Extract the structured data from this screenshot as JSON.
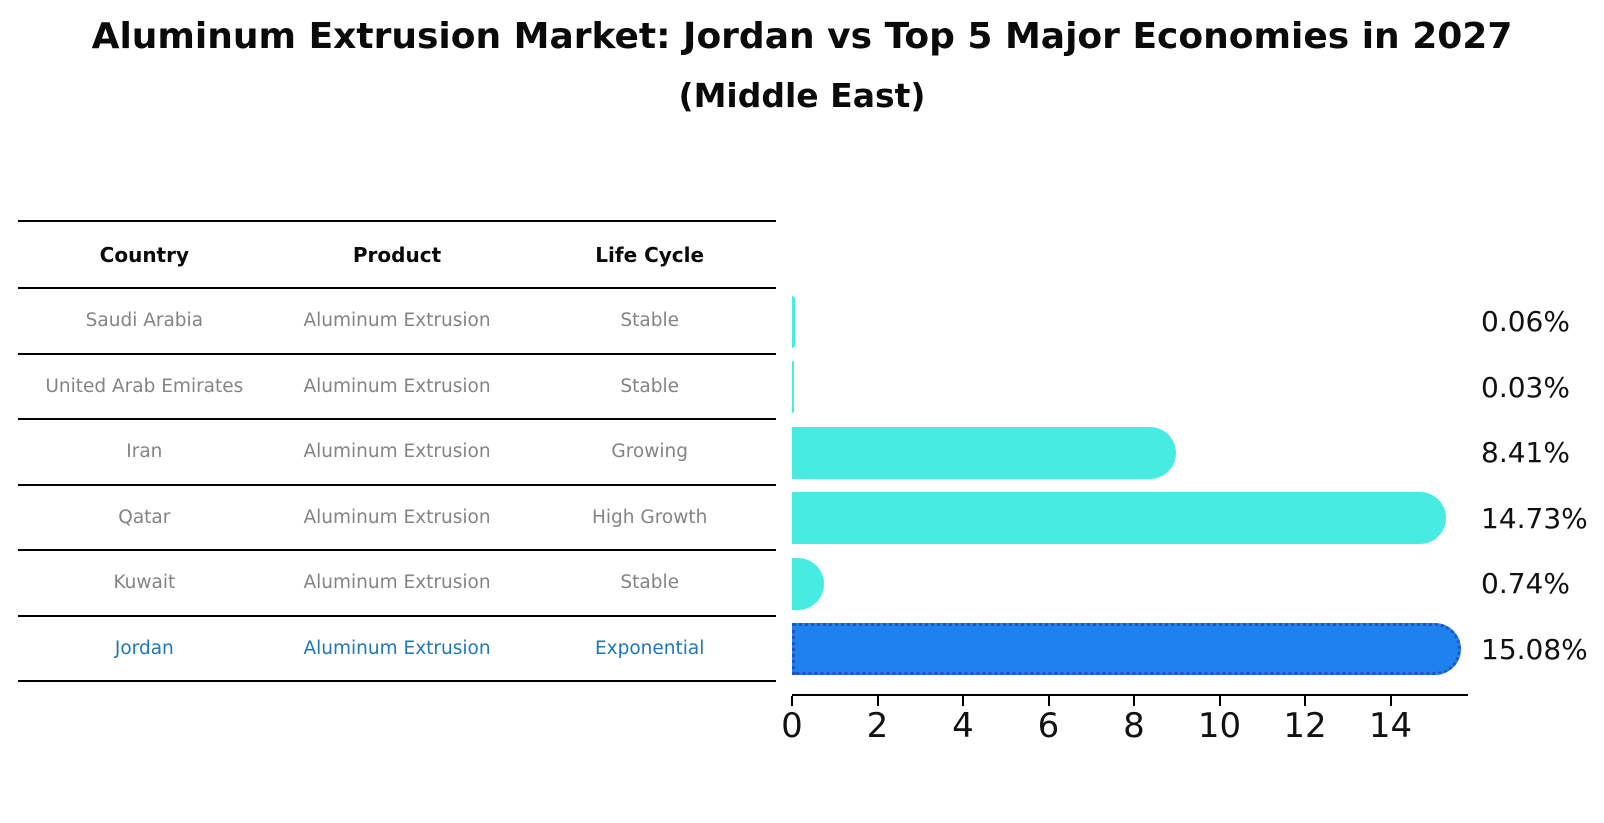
{
  "header": {
    "title": "Aluminum Extrusion Market: Jordan vs Top 5 Major Economies in 2027",
    "subtitle": "(Middle East)"
  },
  "table": {
    "columns": [
      "Country",
      "Product",
      "Life Cycle"
    ],
    "rows": [
      {
        "country": "Saudi Arabia",
        "product": "Aluminum Extrusion",
        "life_cycle": "Stable",
        "value": 0.06,
        "value_label": "0.06%",
        "highlight": false
      },
      {
        "country": "United Arab Emirates",
        "product": "Aluminum Extrusion",
        "life_cycle": "Stable",
        "value": 0.03,
        "value_label": "0.03%",
        "highlight": false
      },
      {
        "country": "Iran",
        "product": "Aluminum Extrusion",
        "life_cycle": "Growing",
        "value": 8.41,
        "value_label": "8.41%",
        "highlight": false
      },
      {
        "country": "Qatar",
        "product": "Aluminum Extrusion",
        "life_cycle": "High Growth",
        "value": 14.73,
        "value_label": "14.73%",
        "highlight": false
      },
      {
        "country": "Kuwait",
        "product": "Aluminum Extrusion",
        "life_cycle": "Stable",
        "value": 0.74,
        "value_label": "0.74%",
        "highlight": false
      },
      {
        "country": "Jordan",
        "product": "Aluminum Extrusion",
        "life_cycle": "Exponential",
        "value": 15.08,
        "value_label": "15.08%",
        "highlight": true
      }
    ]
  },
  "chart_data": {
    "type": "bar",
    "orientation": "horizontal",
    "title": "Aluminum Extrusion Market: Jordan vs Top 5 Major Economies in 2027",
    "subtitle": "(Middle East)",
    "categories": [
      "Saudi Arabia",
      "United Arab Emirates",
      "Iran",
      "Qatar",
      "Kuwait",
      "Jordan"
    ],
    "values": [
      0.06,
      0.03,
      8.41,
      14.73,
      0.74,
      15.08
    ],
    "value_labels": [
      "0.06%",
      "0.03%",
      "8.41%",
      "14.73%",
      "0.74%",
      "15.08%"
    ],
    "x_ticks": [
      0,
      2,
      4,
      6,
      8,
      10,
      12,
      14
    ],
    "xlim": [
      0,
      15.9
    ],
    "xlabel": "",
    "ylabel": "",
    "grid": false,
    "legend_position": "none",
    "highlight_category": "Jordan"
  },
  "colors": {
    "bar_default": "#48EBE2",
    "bar_highlight": "#1E82EE",
    "bar_highlight_edge": "#2153C5",
    "row_text": "#848484",
    "highlight_text": "#1F77B4",
    "heading_text": "#0A0A0A",
    "axis_text": "#111111",
    "background": "#FFFFFF"
  }
}
